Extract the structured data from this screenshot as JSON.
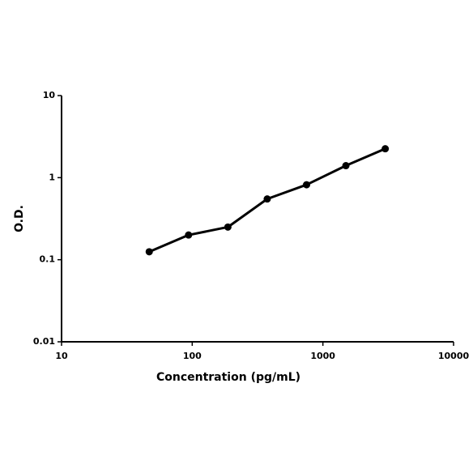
{
  "chart_data": {
    "type": "line",
    "x": [
      46.875,
      93.75,
      187.5,
      375,
      750,
      1500,
      3000
    ],
    "series": [
      {
        "color": "#000000",
        "values": [
          0.125,
          0.2,
          0.25,
          0.55,
          0.82,
          1.4,
          2.25
        ]
      }
    ],
    "xlabel": "Concentration (pg/mL)",
    "ylabel": "O.D.",
    "xscale": "log",
    "yscale": "log",
    "xlim": [
      10,
      10000
    ],
    "ylim": [
      0.01,
      10
    ],
    "xticks": [
      10,
      100,
      1000,
      10000
    ],
    "yticks": [
      0.01,
      0.1,
      1,
      10
    ],
    "grid": false
  }
}
